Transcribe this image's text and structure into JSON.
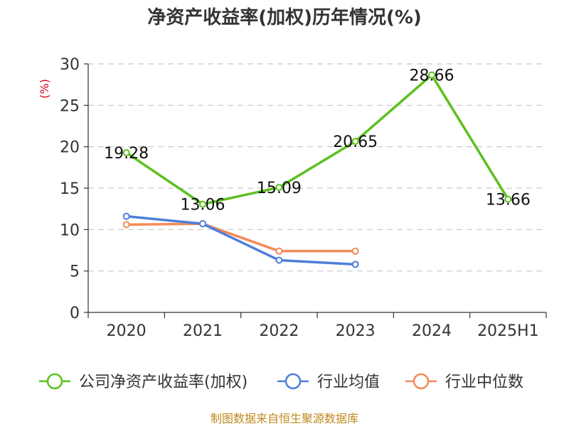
{
  "chart_data": {
    "type": "line",
    "title": "净资产收益率(加权)历年情况(%)",
    "ylabel": "(%)",
    "categories": [
      "2020",
      "2021",
      "2022",
      "2023",
      "2024",
      "2025H1"
    ],
    "ylim": [
      0,
      30
    ],
    "yticks": [
      0,
      5,
      10,
      15,
      20,
      25,
      30
    ],
    "grid": true,
    "legend_position": "bottom",
    "series": [
      {
        "name": "公司净资产收益率(加权)",
        "color": "#5cc01f",
        "values": [
          19.28,
          13.06,
          15.09,
          20.65,
          28.66,
          13.66
        ],
        "show_labels": true
      },
      {
        "name": "行业均值",
        "color": "#4e7fd9",
        "values": [
          11.6,
          10.7,
          6.3,
          5.8,
          null,
          null
        ],
        "show_labels": false
      },
      {
        "name": "行业中位数",
        "color": "#f48a5a",
        "values": [
          10.6,
          10.7,
          7.4,
          7.4,
          null,
          null
        ],
        "show_labels": false
      }
    ]
  },
  "source": "制图数据来自恒生聚源数据库"
}
